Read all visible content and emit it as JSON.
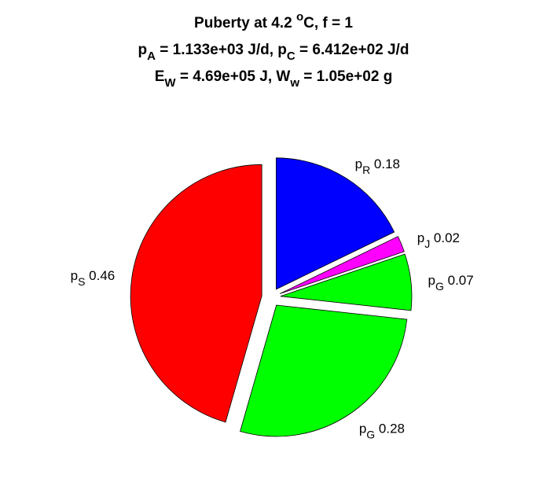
{
  "chart_data": {
    "type": "pie",
    "title": [
      [
        {
          "text": "Puberty at 4.2 "
        },
        {
          "sup": "o"
        },
        {
          "text": "C, f = 1"
        }
      ],
      [
        {
          "text": "p"
        },
        {
          "sub": "A"
        },
        {
          "text": " = 1.133e+03 J/d,  p"
        },
        {
          "sub": "C"
        },
        {
          "text": " = 6.412e+02 J/d"
        }
      ],
      [
        {
          "text": "E"
        },
        {
          "sub": "W"
        },
        {
          "text": " = 4.69e+05 J, W"
        },
        {
          "sub": "w"
        },
        {
          "text": " = 1.05e+02 g"
        }
      ]
    ],
    "categories": [
      {
        "base": "p",
        "sub": "R"
      },
      {
        "base": "p",
        "sub": "J"
      },
      {
        "base": "p",
        "sub": "G"
      },
      {
        "base": "p",
        "sub": "G"
      },
      {
        "base": "p",
        "sub": "S"
      }
    ],
    "values": [
      0.18,
      0.02,
      0.07,
      0.28,
      0.46
    ],
    "colors": [
      "#0000ff",
      "#ff00ff",
      "#00ff00",
      "#00ff00",
      "#ff0000"
    ],
    "exploded": true
  }
}
